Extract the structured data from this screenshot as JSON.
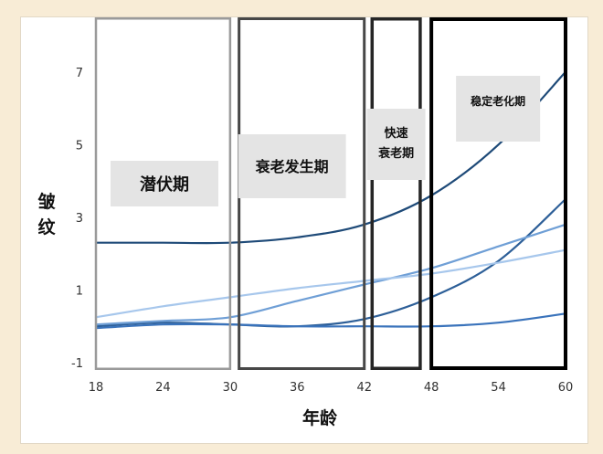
{
  "chart_data": {
    "type": "line",
    "xlabel": "年龄",
    "ylabel": "皱纹",
    "xlim": [
      18,
      60
    ],
    "ylim": [
      -1,
      8
    ],
    "x_ticks": [
      18,
      24,
      30,
      36,
      42,
      48,
      54,
      60
    ],
    "y_ticks": [
      -1,
      1,
      3,
      5,
      7
    ],
    "grid": false,
    "phases": [
      {
        "label": "潜伏期",
        "range": [
          18,
          30
        ],
        "color": "#9a9a9a"
      },
      {
        "label": "衰老发生期",
        "range": [
          30.8,
          42
        ],
        "color": "#474747"
      },
      {
        "label": "快速衰老期",
        "range": [
          42.7,
          47
        ],
        "color": "#262626"
      },
      {
        "label": "稳定老化期",
        "range": [
          48,
          60
        ],
        "color": "#000000"
      }
    ],
    "series": [
      {
        "color": "#1e4a78",
        "x": [
          18,
          24,
          30,
          36,
          42,
          48,
          54,
          60
        ],
        "values": [
          2.3,
          2.3,
          2.3,
          2.45,
          2.8,
          3.6,
          5.0,
          7.0
        ]
      },
      {
        "color": "#2d5f98",
        "x": [
          18,
          24,
          30,
          36,
          42,
          48,
          54,
          60
        ],
        "values": [
          0.0,
          0.1,
          0.05,
          0.0,
          0.2,
          0.8,
          1.8,
          3.5
        ]
      },
      {
        "color": "#6f9fd6",
        "x": [
          18,
          24,
          30,
          36,
          42,
          48,
          54,
          60
        ],
        "values": [
          0.05,
          0.15,
          0.25,
          0.7,
          1.15,
          1.6,
          2.2,
          2.8
        ]
      },
      {
        "color": "#a7c7ec",
        "x": [
          18,
          24,
          30,
          36,
          42,
          48,
          54,
          60
        ],
        "values": [
          0.25,
          0.55,
          0.8,
          1.05,
          1.25,
          1.45,
          1.75,
          2.1
        ]
      },
      {
        "color": "#3a73bb",
        "x": [
          18,
          24,
          30,
          36,
          42,
          48,
          54,
          60
        ],
        "values": [
          -0.05,
          0.05,
          0.05,
          0.0,
          0.0,
          0.0,
          0.1,
          0.35
        ]
      }
    ]
  }
}
